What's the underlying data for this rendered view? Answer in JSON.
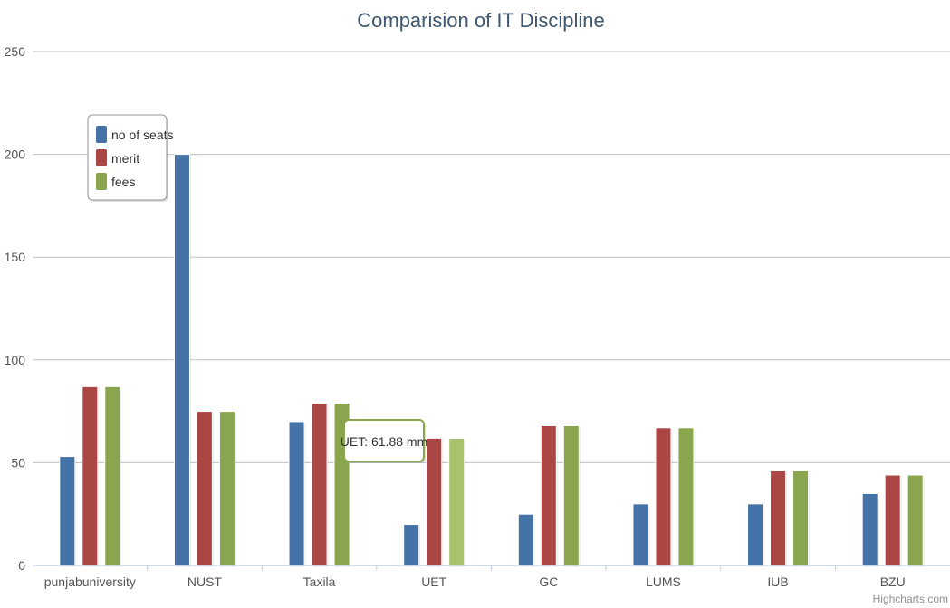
{
  "chart_data": {
    "type": "bar",
    "title": "Comparision of IT Discipline",
    "xlabel": "",
    "ylabel": "",
    "ylim": [
      0,
      250
    ],
    "yticks": [
      0,
      50,
      100,
      150,
      200,
      250
    ],
    "grid": true,
    "legend_position": "top-left",
    "categories": [
      "punjabuniversity",
      "NUST",
      "Taxila",
      "UET",
      "GC",
      "LUMS",
      "IUB",
      "BZU"
    ],
    "series": [
      {
        "name": "no of seats",
        "color": "#4572a7",
        "values": [
          53,
          200,
          70,
          20,
          25,
          30,
          30,
          35
        ]
      },
      {
        "name": "merit",
        "color": "#aa4643",
        "values": [
          87,
          75,
          79,
          61.88,
          68,
          67,
          46,
          44
        ]
      },
      {
        "name": "fees",
        "color": "#89a54e",
        "values": [
          87,
          75,
          79,
          61.88,
          68,
          67,
          46,
          44
        ]
      }
    ],
    "tooltip": {
      "text": "UET: 61.88 mm",
      "series": "fees",
      "category": "UET",
      "border_color": "#89a54e"
    },
    "highlighted": {
      "series": "fees",
      "category": "UET",
      "color": "#a7c46c"
    }
  },
  "credits": "Highcharts.com"
}
